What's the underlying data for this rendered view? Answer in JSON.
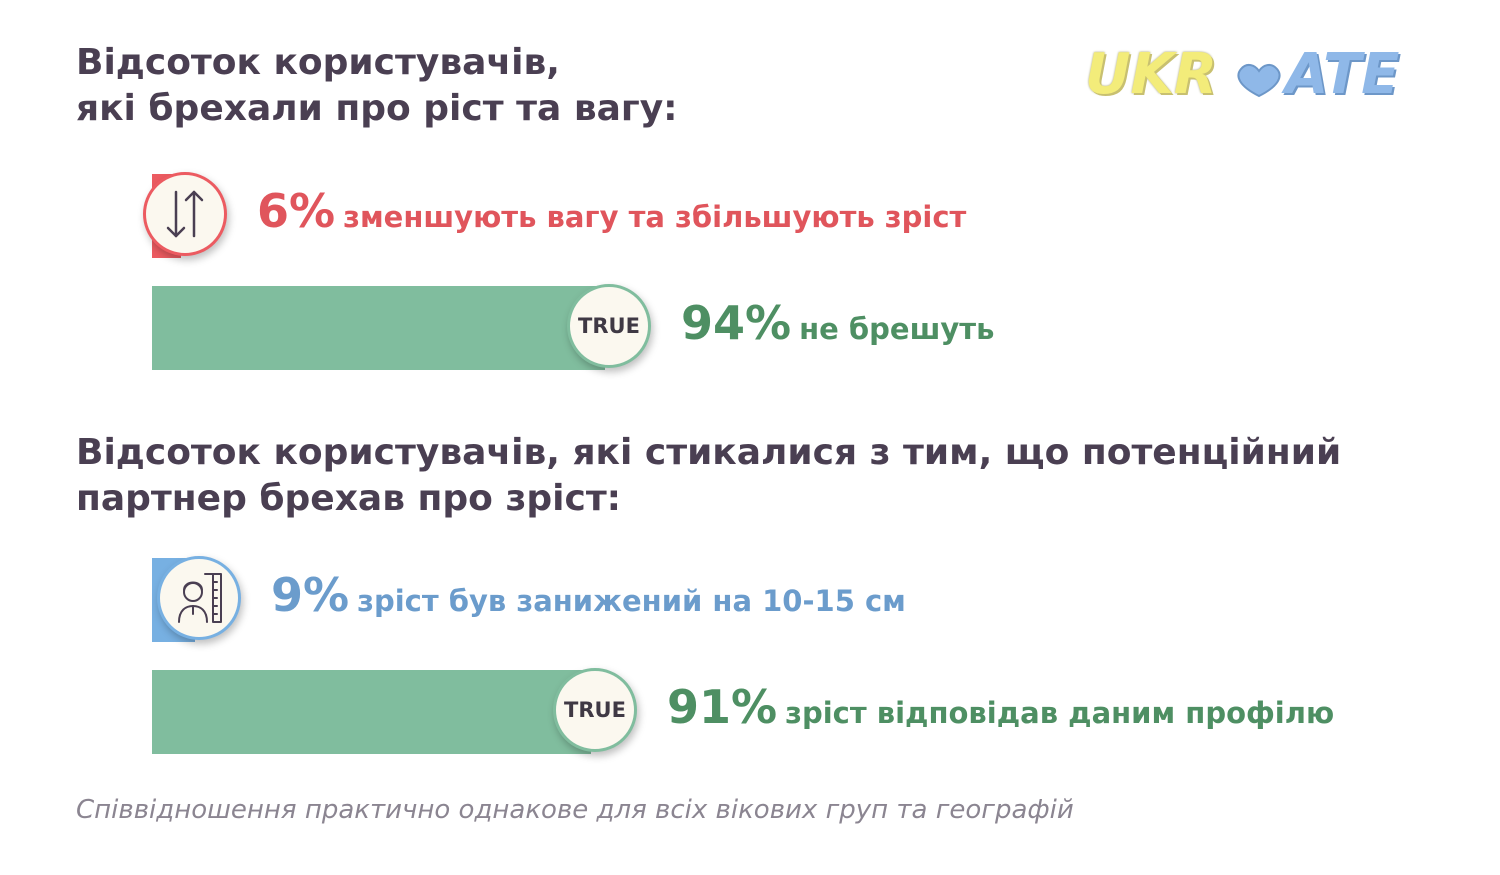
{
  "colors": {
    "title": "#4a3f52",
    "lie_red": "#e0555c",
    "bar_red": "#ec5b61",
    "truth_green": "#4e8f63",
    "bar_green": "#80bd9e",
    "height_blue": "#6b9ccc",
    "bar_blue": "#77b0e2",
    "footnote": "#8b8591"
  },
  "logo": {
    "part1": "UKR",
    "part2": "ATE"
  },
  "chart_data": [
    {
      "type": "bar",
      "orientation": "horizontal",
      "title_lines": [
        "Відсоток користувачів,",
        "які брехали про ріст та вагу:"
      ],
      "xlim": [
        0,
        100
      ],
      "bars": [
        {
          "value": 6,
          "label_value": "6%",
          "label": "зменшують вагу та збільшують зріст",
          "color": "#ec5b61",
          "icon": "up-down-arrows-icon"
        },
        {
          "value": 94,
          "label_value": "94%",
          "label": "не брешуть",
          "color": "#80bd9e",
          "badge": "TRUE"
        }
      ]
    },
    {
      "type": "bar",
      "orientation": "horizontal",
      "title_lines": [
        "Відсоток користувачів, які стикалися з тим, що потенційний",
        "партнер брехав про зріст:"
      ],
      "xlim": [
        0,
        100
      ],
      "bars": [
        {
          "value": 9,
          "label_value": "9%",
          "label": "зріст був занижений на 10-15 см",
          "color": "#77b0e2",
          "icon": "height-measure-person-icon"
        },
        {
          "value": 91,
          "label_value": "91%",
          "label": "зріст відповідав даним профілю",
          "color": "#80bd9e",
          "badge": "TRUE"
        }
      ]
    }
  ],
  "footnote": "Співвідношення практично однакове для всіх вікових груп та географій"
}
